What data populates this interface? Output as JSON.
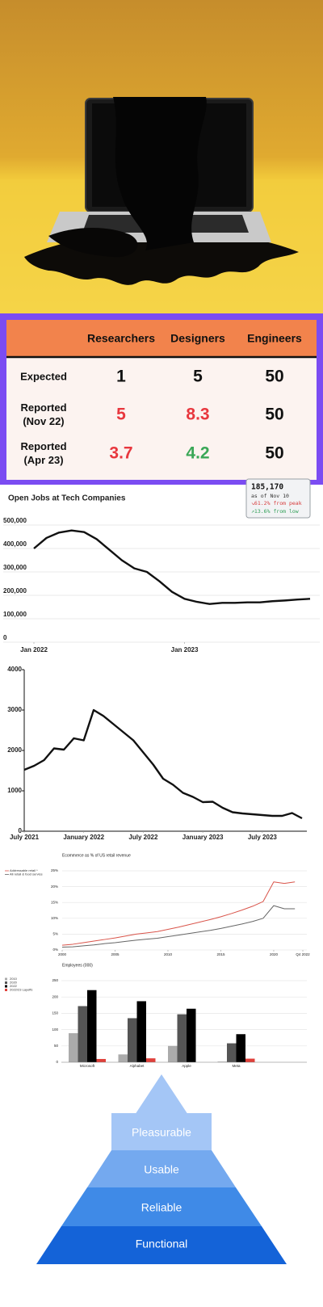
{
  "table": {
    "columns": [
      "Researchers",
      "Designers",
      "Engineers"
    ],
    "rows": [
      {
        "label": [
          "Expected"
        ],
        "cells": [
          "1",
          "5",
          "50"
        ],
        "colors": [
          "#111111",
          "#111111",
          "#111111"
        ]
      },
      {
        "label": [
          "Reported",
          "(Nov 22)"
        ],
        "cells": [
          "5",
          "8.3",
          "50"
        ],
        "colors": [
          "#e8373e",
          "#e8373e",
          "#111111"
        ]
      },
      {
        "label": [
          "Reported",
          "(Apr 23)"
        ],
        "cells": [
          "3.7",
          "4.2",
          "50"
        ],
        "colors": [
          "#e8373e",
          "#3aa757",
          "#111111"
        ]
      }
    ]
  },
  "chart_data": [
    {
      "type": "line",
      "title": "Open Jobs at Tech Companies",
      "annotations": [
        "185,170",
        "as of Nov 10",
        "↘61.2% from peak",
        "↗13.6% from low"
      ],
      "x": [
        "2022-01",
        "2022-02",
        "2022-03",
        "2022-04",
        "2022-05",
        "2022-06",
        "2022-07",
        "2022-08",
        "2022-09",
        "2022-10",
        "2022-11",
        "2022-12",
        "2023-01",
        "2023-02",
        "2023-03",
        "2023-04",
        "2023-05",
        "2023-06",
        "2023-07",
        "2023-08",
        "2023-09",
        "2023-10",
        "2023-11"
      ],
      "values": [
        400000,
        445000,
        468000,
        477000,
        470000,
        440000,
        395000,
        350000,
        315000,
        300000,
        260000,
        215000,
        185000,
        172000,
        163000,
        168000,
        168000,
        170000,
        170000,
        175000,
        178000,
        182000,
        185170
      ],
      "color": "#111111",
      "xlim": [
        "2022-01",
        "2023-11"
      ],
      "xticks": [
        {
          "value": "2022-01",
          "label": "Jan 2022"
        },
        {
          "value": "2023-01",
          "label": "Jan 2023"
        }
      ],
      "ylim": [
        0,
        500000
      ],
      "yticks": [
        0,
        {
          "value": 100000,
          "label": "100,000"
        },
        {
          "value": 200000,
          "label": "200,000"
        },
        {
          "value": 300000,
          "label": "300,000"
        },
        {
          "value": 400000,
          "label": "400,000"
        },
        {
          "value": 500000,
          "label": "500,000"
        }
      ],
      "grid": true
    },
    {
      "type": "line",
      "x": [
        "2021-07",
        "2021-08",
        "2021-09",
        "2021-10",
        "2021-11",
        "2021-12",
        "2022-01",
        "2022-02",
        "2022-03",
        "2022-04",
        "2022-05",
        "2022-06",
        "2022-07",
        "2022-08",
        "2022-09",
        "2022-10",
        "2022-11",
        "2022-12",
        "2023-01",
        "2023-02",
        "2023-03",
        "2023-04",
        "2023-05",
        "2023-06",
        "2023-07",
        "2023-08",
        "2023-09",
        "2023-10",
        "2023-11"
      ],
      "values": [
        1520,
        1620,
        1760,
        2050,
        2020,
        2300,
        2250,
        3000,
        2850,
        2650,
        2450,
        2250,
        1950,
        1650,
        1300,
        1150,
        950,
        850,
        720,
        730,
        580,
        470,
        440,
        420,
        400,
        380,
        380,
        450,
        320
      ],
      "color": "#111111",
      "xlim": [
        "2021-07",
        "2023-11"
      ],
      "xticks": [
        {
          "value": "2021-07",
          "label": "July 2021"
        },
        {
          "value": "2022-01",
          "label": "January 2022"
        },
        {
          "value": "2022-07",
          "label": "July 2022"
        },
        {
          "value": "2023-01",
          "label": "January 2023"
        },
        {
          "value": "2023-07",
          "label": "July 2023"
        }
      ],
      "ylim": [
        0,
        4000
      ],
      "yticks": [
        0,
        1000,
        2000,
        3000,
        4000
      ],
      "grid": false
    },
    {
      "type": "line",
      "title": "Ecommerce as % of US retail revenue",
      "x": [
        2000,
        2001,
        2002,
        2003,
        2004,
        2005,
        2006,
        2007,
        2008,
        2009,
        2010,
        2011,
        2012,
        2013,
        2014,
        2015,
        2016,
        2017,
        2018,
        2019,
        2020,
        2021,
        2022
      ],
      "series": [
        {
          "name": "Addressable retail *",
          "color": "#d9544a",
          "values": [
            1.5,
            1.8,
            2.3,
            2.8,
            3.3,
            3.8,
            4.4,
            5.0,
            5.4,
            5.8,
            6.5,
            7.2,
            8.0,
            8.8,
            9.6,
            10.5,
            11.5,
            12.6,
            13.8,
            15.3,
            21.5,
            21.0,
            21.5
          ]
        },
        {
          "name": "All retail & food service",
          "color": "#666666",
          "values": [
            0.9,
            1.0,
            1.3,
            1.6,
            2.0,
            2.3,
            2.7,
            3.1,
            3.4,
            3.7,
            4.2,
            4.7,
            5.2,
            5.7,
            6.2,
            6.8,
            7.5,
            8.2,
            9.0,
            10.0,
            14.0,
            13.0,
            13.0
          ]
        }
      ],
      "xlim": [
        2000,
        2022.75
      ],
      "xticks": [
        2000,
        2005,
        2010,
        2015,
        2020,
        {
          "value": 2022.75,
          "label": "Q4 2022"
        }
      ],
      "ylim": [
        0,
        25
      ],
      "yticks": [
        {
          "value": 0,
          "label": "0%"
        },
        {
          "value": 5,
          "label": "5%"
        },
        {
          "value": 10,
          "label": "10%"
        },
        {
          "value": 15,
          "label": "15%"
        },
        {
          "value": 20,
          "label": "20%"
        },
        {
          "value": 25,
          "label": "25%"
        }
      ],
      "grid": true,
      "legend": "left"
    },
    {
      "type": "bar",
      "title": "Employees (000)",
      "categories": [
        "Microsoft",
        "Alphabet",
        "Apple",
        "Meta"
      ],
      "series": [
        {
          "name": "2010",
          "color": "#ababab",
          "values": [
            89,
            24,
            50,
            2
          ]
        },
        {
          "name": "2020",
          "color": "#555555",
          "values": [
            172,
            135,
            147,
            58
          ]
        },
        {
          "name": "2022",
          "color": "#000000",
          "values": [
            221,
            187,
            164,
            86
          ]
        },
        {
          "name": "2022/23 Layoffs",
          "color": "#e0403a",
          "values": [
            10,
            12,
            null,
            11
          ]
        }
      ],
      "ylim": [
        0,
        250
      ],
      "yticks": [
        0,
        50,
        100,
        150,
        200,
        250
      ],
      "grid": true,
      "legend": "left"
    }
  ],
  "pyramid": {
    "levels": [
      "Pleasurable",
      "Usable",
      "Reliable",
      "Functional"
    ]
  }
}
